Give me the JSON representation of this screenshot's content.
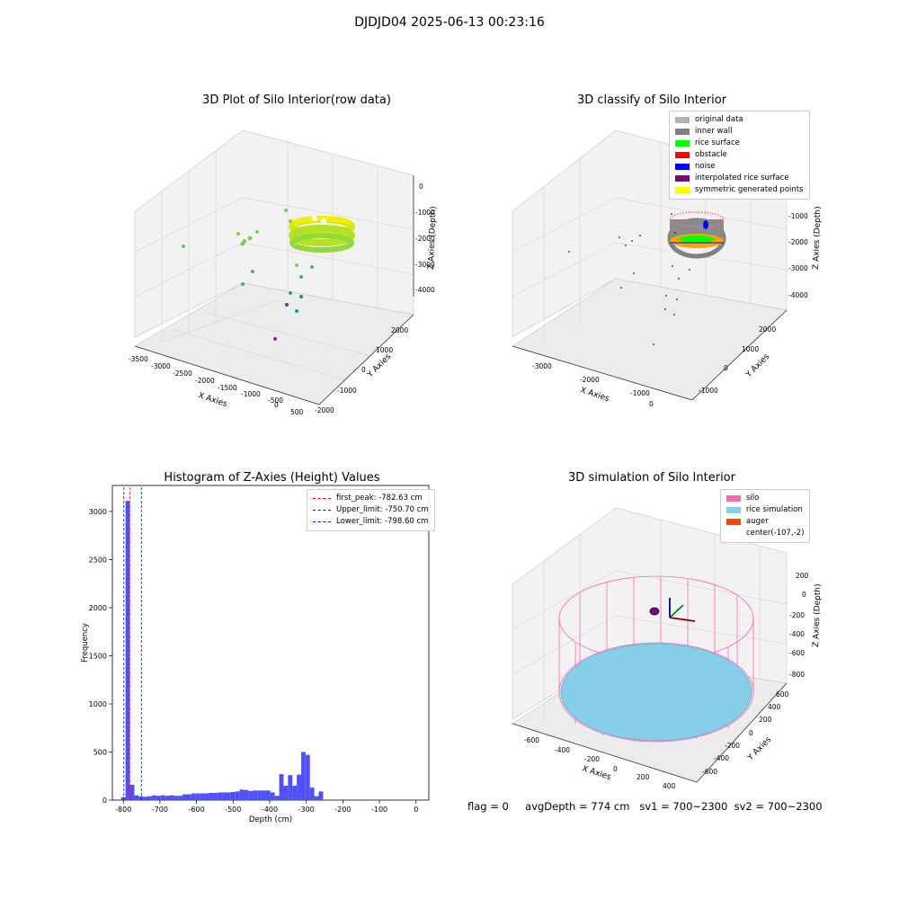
{
  "suptitle": "DJDJD04 2025-06-13 00:23:16",
  "panels": {
    "raw": {
      "title": "3D Plot of Silo Interior(row data)",
      "xlabel": "X Axies",
      "ylabel": "Y Axies",
      "zlabel": "Z Axies (Depth)",
      "x_ticks": [
        "-3500",
        "-3000",
        "-2500",
        "-2000",
        "-1500",
        "-1000",
        "-500",
        "0",
        "500"
      ],
      "y_ticks": [
        "-2000",
        "-1000",
        "0",
        "1000",
        "2000"
      ],
      "z_ticks": [
        "0",
        "-1000",
        "-2000",
        "-3000",
        "-4000"
      ]
    },
    "classify": {
      "title": "3D classify of Silo Interior",
      "xlabel": "X Axies",
      "ylabel": "Y Axies",
      "zlabel": "Z Axies (Depth)",
      "x_ticks": [
        "-3000",
        "-2000",
        "-1000",
        "0"
      ],
      "y_ticks": [
        "-1000",
        "0",
        "1000",
        "2000"
      ],
      "z_ticks": [
        "0",
        "-1000",
        "-2000",
        "-3000",
        "-4000"
      ],
      "legend": [
        {
          "label": "original data",
          "color": "#b3b3b3"
        },
        {
          "label": "inner wall",
          "color": "#808080"
        },
        {
          "label": "rice surface",
          "color": "#00ff00"
        },
        {
          "label": "obstacle",
          "color": "#ff0000"
        },
        {
          "label": "noise",
          "color": "#0000ff"
        },
        {
          "label": "interpolated rice surface",
          "color": "#800080"
        },
        {
          "label": "symmetric generated points",
          "color": "#ffff00"
        }
      ]
    },
    "histogram": {
      "title": "Histogram of Z-Axies (Height) Values",
      "xlabel": "Depth (cm)",
      "ylabel": "Frequency",
      "legend": [
        {
          "label": "first_peak: -782.63 cm",
          "color": "#ff0000"
        },
        {
          "label": "Upper_limit: -750.70 cm",
          "color": "#0000ff"
        },
        {
          "label": "Lower_limit: -798.60 cm",
          "color": "#0000ff"
        }
      ]
    },
    "simulation": {
      "title": "3D simulation of Silo Interior",
      "xlabel": "X Axies",
      "ylabel": "Y Axies",
      "zlabel": "Z Axies (Depth)",
      "x_ticks": [
        "-600",
        "-400",
        "-200",
        "0",
        "200",
        "400"
      ],
      "y_ticks": [
        "-600",
        "-400",
        "-200",
        "0",
        "200",
        "400",
        "600"
      ],
      "z_ticks": [
        "200",
        "0",
        "-200",
        "-400",
        "-600",
        "-800"
      ],
      "legend": [
        {
          "label": "silo",
          "color": "#ff69b4"
        },
        {
          "label": "rice simulation",
          "color": "#87ceeb"
        },
        {
          "label": "auger",
          "color": "#ff4500"
        },
        {
          "label": "center(-107,-2)",
          "color": "none"
        }
      ]
    }
  },
  "footer": {
    "flag": "flag = 0",
    "avg_depth": "avgDepth = 774 cm",
    "sv1": "sv1 = 700~2300",
    "sv2": "sv2 = 700~2300"
  },
  "chart_data": [
    {
      "type": "bar",
      "title": "Histogram of Z-Axies (Height) Values",
      "xlabel": "Depth (cm)",
      "ylabel": "Frequency",
      "xlim": [
        -830,
        35
      ],
      "ylim": [
        0,
        3270
      ],
      "x_ticks": [
        -800,
        -700,
        -600,
        -500,
        -400,
        -300,
        -200,
        -100,
        0
      ],
      "y_ticks": [
        0,
        500,
        1000,
        1500,
        2000,
        2500,
        3000
      ],
      "bin_width": 12,
      "bin_start": -806,
      "values": [
        30,
        3110,
        160,
        50,
        40,
        35,
        40,
        50,
        45,
        50,
        45,
        50,
        45,
        45,
        60,
        60,
        70,
        70,
        70,
        70,
        75,
        75,
        80,
        80,
        80,
        85,
        90,
        110,
        105,
        95,
        100,
        100,
        100,
        100,
        80,
        45,
        270,
        150,
        260,
        150,
        265,
        500,
        470,
        130,
        40,
        90
      ],
      "bar_color": "#5050ff",
      "vlines": [
        {
          "label": "first_peak: -782.63 cm",
          "x": -782.63,
          "color": "#ff0000"
        },
        {
          "label": "Upper_limit: -750.70 cm",
          "x": -750.7,
          "color": "#0000ff"
        },
        {
          "label": "Lower_limit: -798.60 cm",
          "x": -798.6,
          "color": "#0000ff"
        }
      ]
    }
  ]
}
